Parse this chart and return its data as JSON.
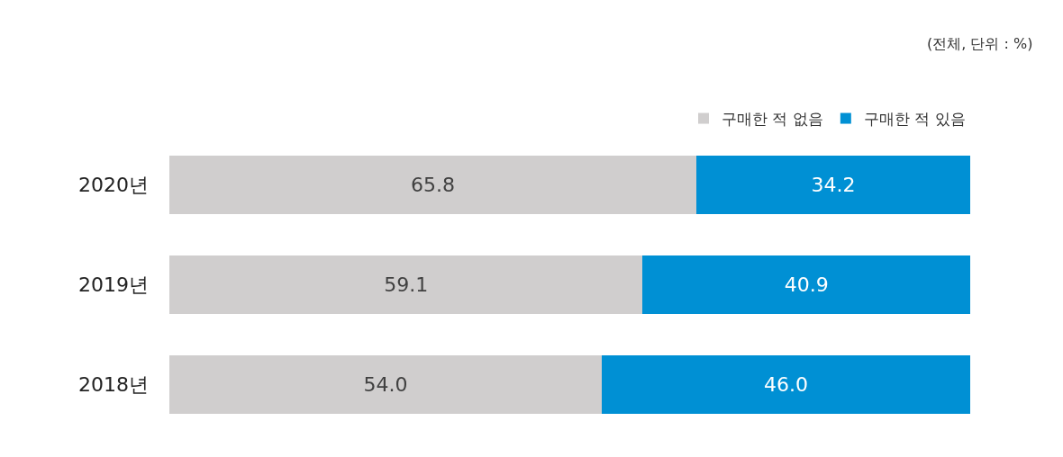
{
  "chart_data": {
    "type": "bar",
    "orientation": "horizontal",
    "stacked": true,
    "categories": [
      "2020년",
      "2019년",
      "2018년"
    ],
    "series": [
      {
        "name": "구매한 적 없음",
        "color": "#d0cece",
        "values": [
          65.8,
          59.1,
          54.0
        ],
        "value_labels": [
          "65.8",
          "59.1",
          "54.0"
        ]
      },
      {
        "name": "구매한 적 있음",
        "color": "#0090d4",
        "values": [
          34.2,
          40.9,
          46.0
        ],
        "value_labels": [
          "34.2",
          "40.9",
          "46.0"
        ]
      }
    ],
    "xlim": [
      0,
      100
    ],
    "tick_labels": "y",
    "legend": "top right",
    "annotations": [
      "(전체, 단위 : %)"
    ]
  }
}
